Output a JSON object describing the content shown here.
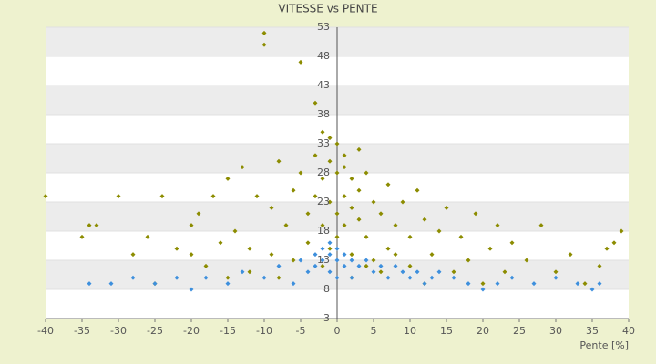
{
  "chart_data": {
    "type": "scatter",
    "title": "VITESSE vs PENTE",
    "xlabel": "Pente [%]",
    "xlim": [
      -40,
      40
    ],
    "xticks": [
      -40,
      -35,
      -30,
      -25,
      -20,
      -15,
      -10,
      -5,
      0,
      5,
      10,
      15,
      20,
      25,
      30,
      35,
      40
    ],
    "ylim": [
      3,
      53
    ],
    "yticks": [
      3,
      8,
      13,
      18,
      23,
      28,
      33,
      38,
      43,
      48,
      53
    ],
    "grid": true,
    "series": [
      {
        "color": "#8c8c00",
        "x": [
          -40,
          -35,
          -34,
          -33,
          -30,
          -28,
          -26,
          -25,
          -24,
          -22,
          -20,
          -19,
          -18,
          -17,
          -15,
          -14,
          -13,
          -12,
          -11,
          -10,
          -10,
          -9,
          -8,
          -7,
          -6,
          -5,
          -5,
          -4,
          -4,
          -3,
          -3,
          -3,
          -2,
          -2,
          -2,
          -1,
          -1,
          -1,
          0,
          0,
          0,
          0,
          1,
          1,
          1,
          2,
          2,
          2,
          3,
          3,
          4,
          4,
          5,
          5,
          6,
          7,
          7,
          8,
          9,
          10,
          10,
          11,
          12,
          13,
          14,
          15,
          16,
          17,
          18,
          19,
          20,
          21,
          22,
          23,
          24,
          26,
          28,
          30,
          32,
          34,
          36,
          37,
          38,
          39,
          -8,
          -12,
          -6,
          2,
          6,
          12,
          -15,
          -20,
          -2,
          4,
          8,
          -9,
          -16,
          3,
          -1,
          1
        ],
        "values": [
          24,
          17,
          19,
          19,
          24,
          14,
          17,
          9,
          24,
          15,
          19,
          21,
          12,
          24,
          27,
          18,
          29,
          15,
          24,
          50,
          52,
          22,
          30,
          19,
          25,
          47,
          28,
          21,
          16,
          40,
          31,
          24,
          35,
          27,
          19,
          30,
          23,
          15,
          33,
          28,
          21,
          17,
          29,
          24,
          19,
          27,
          22,
          14,
          25,
          20,
          28,
          17,
          23,
          13,
          21,
          26,
          15,
          19,
          23,
          12,
          17,
          25,
          20,
          14,
          18,
          22,
          11,
          17,
          13,
          21,
          9,
          15,
          19,
          11,
          16,
          13,
          19,
          11,
          14,
          9,
          12,
          15,
          16,
          18,
          10,
          11,
          13,
          10,
          11,
          9,
          10,
          14,
          12,
          12,
          14,
          14,
          16,
          32,
          34,
          31
        ]
      },
      {
        "color": "#3d8fdd",
        "x": [
          -34,
          -31,
          -28,
          -25,
          -22,
          -20,
          -18,
          -15,
          -13,
          -10,
          -8,
          -6,
          -5,
          -4,
          -3,
          -3,
          -2,
          -2,
          -1,
          -1,
          -1,
          0,
          0,
          0,
          1,
          1,
          2,
          2,
          3,
          4,
          5,
          6,
          7,
          8,
          9,
          10,
          11,
          12,
          13,
          14,
          16,
          18,
          20,
          22,
          24,
          27,
          30,
          33,
          35,
          36
        ],
        "values": [
          9,
          9,
          10,
          9,
          10,
          8,
          10,
          9,
          11,
          10,
          12,
          9,
          13,
          11,
          14,
          12,
          15,
          13,
          16,
          14,
          11,
          15,
          13,
          10,
          14,
          12,
          13,
          10,
          12,
          13,
          11,
          12,
          10,
          12,
          11,
          10,
          11,
          9,
          10,
          11,
          10,
          9,
          8,
          9,
          10,
          9,
          10,
          9,
          8,
          9
        ]
      }
    ]
  }
}
